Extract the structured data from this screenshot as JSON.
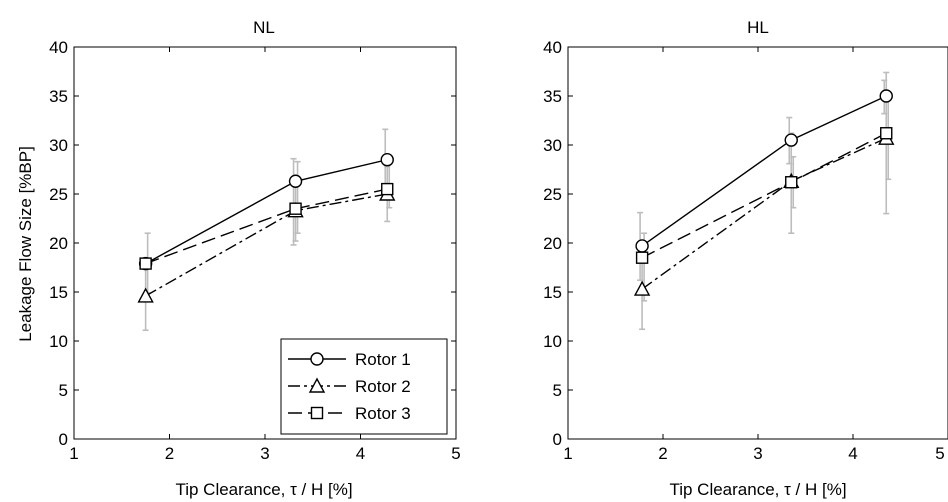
{
  "ylabel": "Leakage Flow Size  [%BP]",
  "xlabel": "Tip Clearance, τ / H [%]",
  "chart_data": [
    {
      "type": "line",
      "title": "NL",
      "xlabel": "Tip Clearance, τ / H [%]",
      "ylabel": "Leakage Flow Size  [%BP]",
      "xlim": [
        1,
        5
      ],
      "ylim": [
        0,
        40
      ],
      "xticks": [
        1,
        2,
        3,
        4,
        5
      ],
      "yticks": [
        0,
        5,
        10,
        15,
        20,
        25,
        30,
        35,
        40
      ],
      "grid": false,
      "legend": "bottom-right",
      "series": [
        {
          "name": "Rotor 1",
          "marker": "circle",
          "dash": "solid",
          "x": [
            1.75,
            3.32,
            4.28
          ],
          "y": [
            17.9,
            26.3,
            28.5
          ],
          "err_low": [
            null,
            19.8,
            25.2
          ],
          "err_high": [
            null,
            28.6,
            31.6
          ]
        },
        {
          "name": "Rotor 2",
          "marker": "triangle",
          "dash": "dashdot",
          "x": [
            1.75,
            3.32,
            4.28
          ],
          "y": [
            14.6,
            23.3,
            25.0
          ],
          "err_low": [
            11.1,
            20.2,
            22.2
          ],
          "err_high": [
            18.0,
            26.8,
            27.8
          ]
        },
        {
          "name": "Rotor 3",
          "marker": "square",
          "dash": "dashed",
          "x": [
            1.75,
            3.32,
            4.28
          ],
          "y": [
            17.9,
            23.5,
            25.5
          ],
          "err_low": [
            14.9,
            21.0,
            23.6
          ],
          "err_high": [
            21.0,
            28.3,
            28.2
          ]
        }
      ]
    },
    {
      "type": "line",
      "title": "HL",
      "xlabel": "Tip Clearance, τ / H [%]",
      "ylabel": "",
      "xlim": [
        1,
        5
      ],
      "ylim": [
        0,
        40
      ],
      "xticks": [
        1,
        2,
        3,
        4,
        5
      ],
      "yticks": [
        0,
        5,
        10,
        15,
        20,
        25,
        30,
        35,
        40
      ],
      "grid": false,
      "legend": "",
      "series": [
        {
          "name": "Rotor 1",
          "marker": "circle",
          "dash": "solid",
          "x": [
            1.78,
            3.35,
            4.35
          ],
          "y": [
            19.7,
            30.5,
            35.0
          ],
          "err_low": [
            16.2,
            28.1,
            33.2
          ],
          "err_high": [
            23.1,
            32.8,
            36.6
          ]
        },
        {
          "name": "Rotor 2",
          "marker": "triangle",
          "dash": "dashdot",
          "x": [
            1.78,
            3.35,
            4.35
          ],
          "y": [
            15.3,
            26.3,
            30.7
          ],
          "err_low": [
            11.2,
            21.0,
            23.0
          ],
          "err_high": [
            19.5,
            31.2,
            37.4
          ]
        },
        {
          "name": "Rotor 3",
          "marker": "square",
          "dash": "dashed",
          "x": [
            1.78,
            3.35,
            4.35
          ],
          "y": [
            18.5,
            26.2,
            31.2
          ],
          "err_low": [
            14.1,
            23.6,
            26.5
          ],
          "err_high": [
            21.0,
            28.8,
            34.7
          ]
        }
      ]
    }
  ]
}
